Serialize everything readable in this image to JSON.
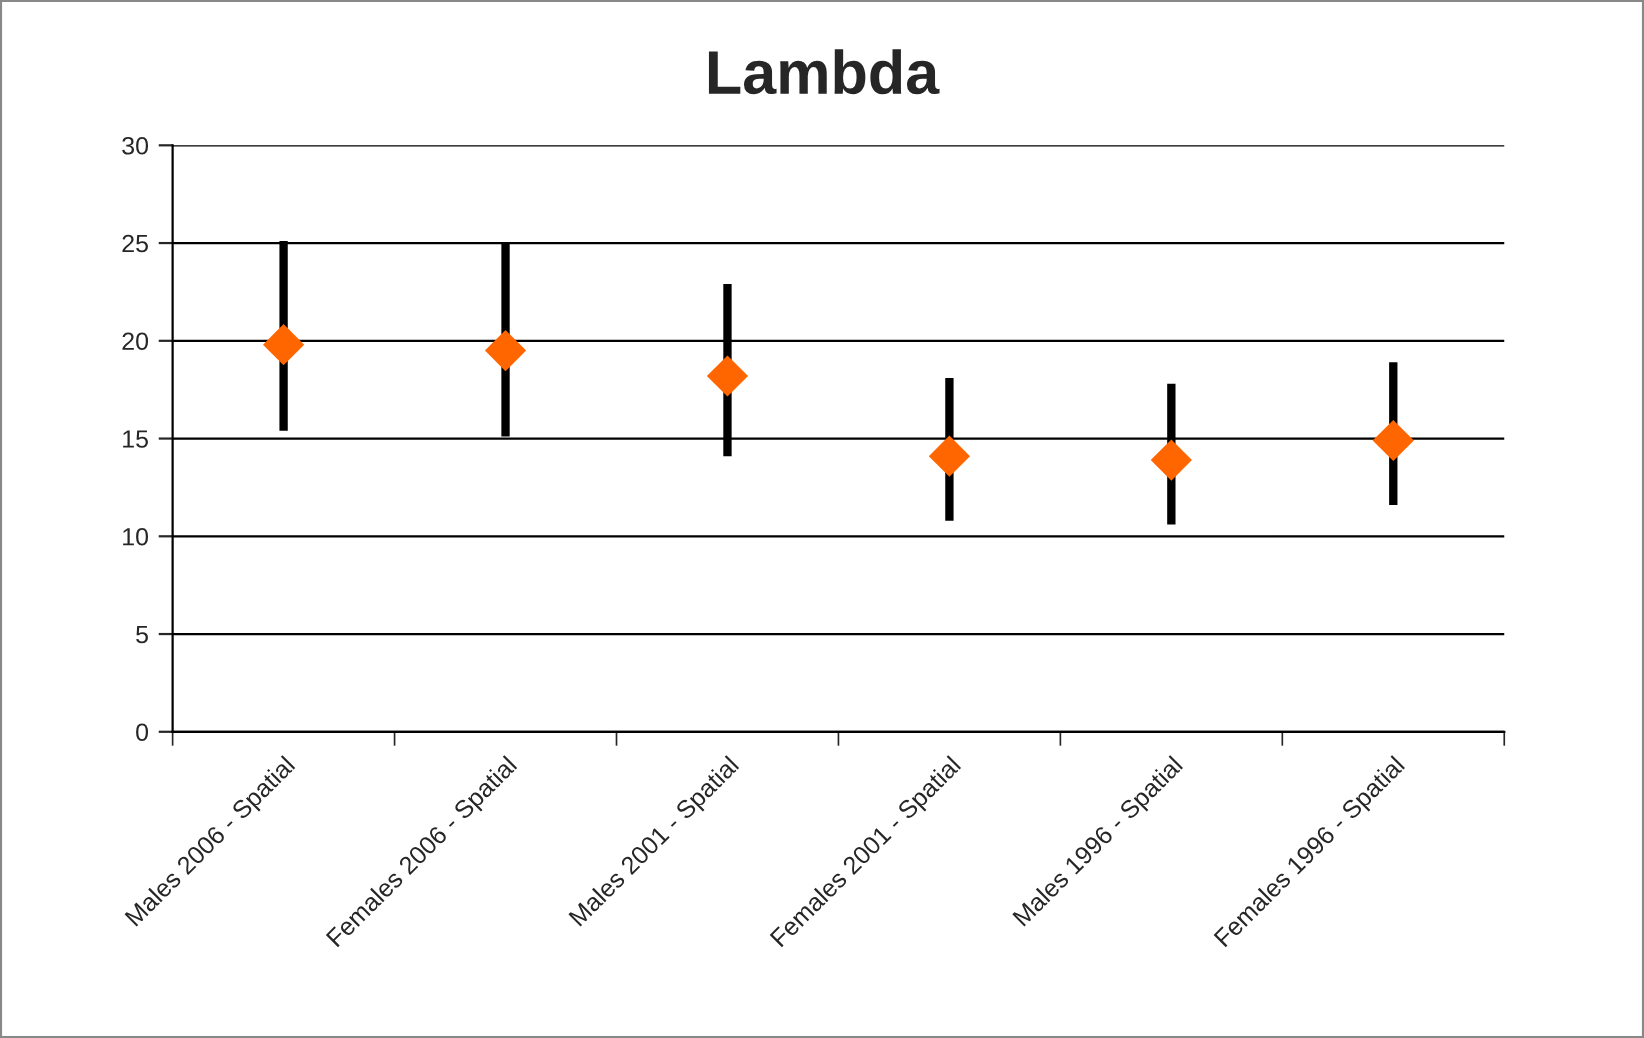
{
  "chart_data": {
    "type": "scatter",
    "title": "Lambda",
    "categories": [
      "Males 2006 - Spatial",
      "Females 2006 - Spatial",
      "Males 2001 - Spatial",
      "Females 2001 - Spatial",
      "Males 1996 - Spatial",
      "Females 1996 - Spatial"
    ],
    "series": [
      {
        "color": "#ff6600",
        "values": [
          19.8,
          19.5,
          18.2,
          14.1,
          13.9,
          14.9
        ],
        "errors": [
          [
            15.4,
            25.1
          ],
          [
            15.1,
            25.0
          ],
          [
            14.1,
            22.9
          ],
          [
            10.8,
            18.1
          ],
          [
            10.6,
            17.8
          ],
          [
            11.6,
            18.9
          ]
        ]
      }
    ],
    "ylim": [
      0,
      30
    ],
    "yticks": [
      0,
      5,
      10,
      15,
      20,
      25,
      30
    ],
    "grid": "y",
    "marker": "diamond",
    "legend": false
  }
}
